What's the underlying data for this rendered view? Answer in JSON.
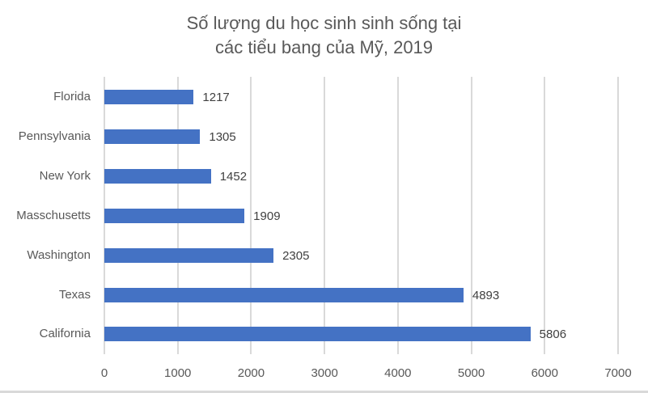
{
  "chart_data": {
    "type": "bar",
    "orientation": "horizontal",
    "title": "Số lượng du học sinh sinh sống tại các tiểu bang của Mỹ, 2019",
    "title_lines": [
      "Số lượng du học sinh sinh sống tại",
      "các tiểu bang của Mỹ, 2019"
    ],
    "categories": [
      "Florida",
      "Pennsylvania",
      "New York",
      "Masschusetts",
      "Washington",
      "Texas",
      "California"
    ],
    "values": [
      1217,
      1305,
      1452,
      1909,
      2305,
      4893,
      5806
    ],
    "data_labels": [
      "1217",
      "1305",
      "1452",
      "1909",
      "2305",
      "4893",
      "5806"
    ],
    "xlabel": "",
    "ylabel": "",
    "xlim": [
      0,
      7000
    ],
    "x_ticks": [
      "0",
      "1000",
      "2000",
      "3000",
      "4000",
      "5000",
      "6000",
      "7000"
    ],
    "grid": true,
    "legend": "none",
    "bar_color": "#4472c4"
  }
}
